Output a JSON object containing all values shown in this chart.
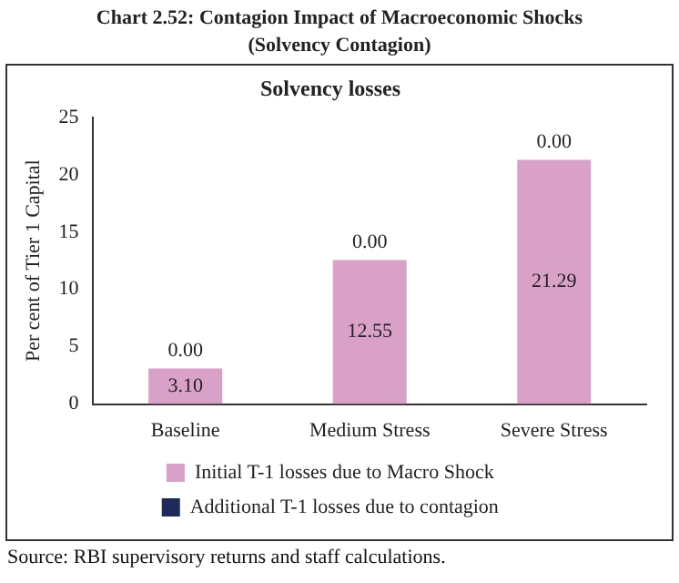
{
  "chart_data": {
    "type": "bar",
    "title": "Chart 2.52: Contagion Impact of Macroeconomic Shocks\n(Solvency Contagion)",
    "subtitle": "Solvency losses",
    "ylabel": "Per cent of Tier 1 Capital",
    "categories": [
      "Baseline",
      "Medium Stress",
      "Severe Stress"
    ],
    "stacked": true,
    "series": [
      {
        "name": "Initial T-1 losses due to Macro Shock",
        "color": "#d9a0c8",
        "values": [
          3.1,
          12.55,
          21.29
        ],
        "value_labels": [
          "3.10",
          "12.55",
          "21.29"
        ]
      },
      {
        "name": "Additional T-1 losses due to contagion",
        "color": "#1f2a5c",
        "values": [
          0,
          0,
          0
        ],
        "value_labels": [
          "0.00",
          "0.00",
          "0.00"
        ]
      }
    ],
    "ylim": [
      0,
      25
    ],
    "yticks": [
      0,
      5,
      10,
      15,
      20,
      25
    ],
    "grid": false,
    "legend": "bottom",
    "annotations": [
      "Source: RBI supervisory returns and staff calculations."
    ]
  }
}
